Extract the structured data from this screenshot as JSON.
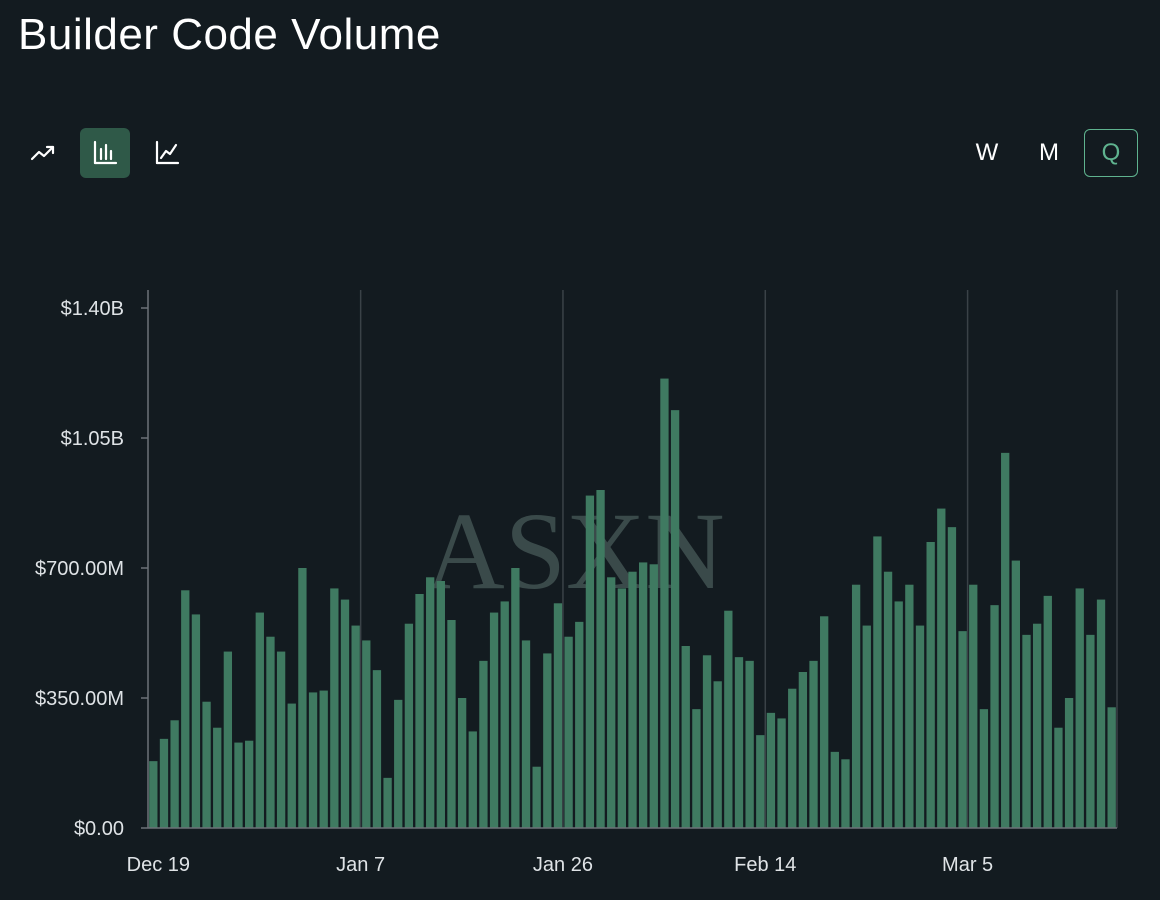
{
  "header": {
    "title": "Builder Code Volume"
  },
  "toolbar": {
    "chart_types": [
      {
        "icon": "trend-arrow-icon",
        "active": false
      },
      {
        "icon": "bar-chart-icon",
        "active": true
      },
      {
        "icon": "line-chart-icon",
        "active": false
      }
    ],
    "periods": [
      {
        "label": "W",
        "active": false
      },
      {
        "label": "M",
        "active": false
      },
      {
        "label": "Q",
        "active": true
      }
    ]
  },
  "colors": {
    "bar": "#3f7a61",
    "background": "#131b20",
    "accent": "#5fb38f"
  },
  "watermark": "ASXN",
  "chart_data": {
    "type": "bar",
    "title": "Builder Code Volume",
    "xlabel": "",
    "ylabel": "",
    "ylim": [
      0,
      1400000000
    ],
    "y_ticks": [
      0,
      350000000,
      700000000,
      1050000000,
      1400000000
    ],
    "y_tick_labels": [
      "$0.00",
      "$350.00M",
      "$700.00M",
      "$1.05B",
      "$1.40B"
    ],
    "x_tick_labels": [
      "Dec 19",
      "Jan 7",
      "Jan 26",
      "Feb 14",
      "Mar 5"
    ],
    "x_tick_indices": [
      0,
      19,
      38,
      57,
      76
    ],
    "grid": true,
    "values": [
      180000000,
      240000000,
      290000000,
      640000000,
      575000000,
      340000000,
      270000000,
      475000000,
      230000000,
      235000000,
      580000000,
      515000000,
      475000000,
      335000000,
      700000000,
      365000000,
      370000000,
      645000000,
      615000000,
      545000000,
      505000000,
      425000000,
      135000000,
      345000000,
      550000000,
      630000000,
      675000000,
      665000000,
      560000000,
      350000000,
      260000000,
      450000000,
      580000000,
      610000000,
      700000000,
      505000000,
      165000000,
      470000000,
      605000000,
      515000000,
      555000000,
      895000000,
      910000000,
      675000000,
      645000000,
      690000000,
      715000000,
      710000000,
      1210000000,
      1125000000,
      490000000,
      320000000,
      465000000,
      395000000,
      585000000,
      460000000,
      450000000,
      250000000,
      310000000,
      295000000,
      375000000,
      420000000,
      450000000,
      570000000,
      205000000,
      185000000,
      655000000,
      545000000,
      785000000,
      690000000,
      610000000,
      655000000,
      545000000,
      770000000,
      860000000,
      810000000,
      530000000,
      655000000,
      320000000,
      600000000,
      1010000000,
      720000000,
      520000000,
      550000000,
      625000000,
      270000000,
      350000000,
      645000000,
      520000000,
      615000000,
      325000000
    ]
  }
}
